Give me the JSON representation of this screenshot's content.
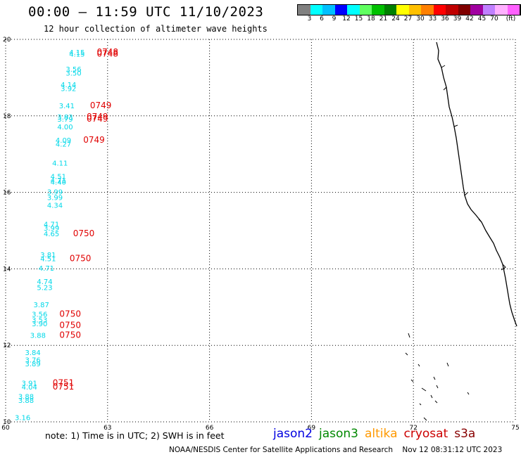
{
  "title": "00:00 – 11:59 UTC 11/10/2023",
  "subtitle": "12 hour collection of altimeter wave heights",
  "colorbar": {
    "colors": [
      "#808080",
      "#00ffff",
      "#00c0ff",
      "#0000ff",
      "#00ffff",
      "#60ff60",
      "#00c000",
      "#008000",
      "#ffff00",
      "#ffc000",
      "#ff8000",
      "#ff0000",
      "#c00000",
      "#800000",
      "#a000a0",
      "#c080ff",
      "#ffb0ff",
      "#ff60ff",
      "#000000"
    ],
    "labels": [
      "3",
      "6",
      "9",
      "12",
      "15",
      "18",
      "21",
      "24",
      "27",
      "30",
      "33",
      "36",
      "39",
      "42",
      "45",
      "70",
      "(ft)"
    ]
  },
  "map": {
    "x_ticks": [
      "60",
      "63",
      "66",
      "69",
      "72",
      "75"
    ],
    "y_ticks": [
      "20",
      "18",
      "16",
      "14",
      "12",
      "10"
    ],
    "x_range": [
      60,
      75
    ],
    "y_range": [
      10,
      20
    ],
    "wave_heights_ft": [
      {
        "lon": 62.1,
        "lat": 19.6,
        "v": "4.15"
      },
      {
        "lon": 62.1,
        "lat": 19.55,
        "v": "4.15"
      },
      {
        "lon": 62.0,
        "lat": 19.15,
        "v": "3.56"
      },
      {
        "lon": 62.0,
        "lat": 19.05,
        "v": "3.50"
      },
      {
        "lon": 61.85,
        "lat": 18.75,
        "v": "4.14"
      },
      {
        "lon": 61.85,
        "lat": 18.65,
        "v": "3.92"
      },
      {
        "lon": 61.8,
        "lat": 18.2,
        "v": "3.41"
      },
      {
        "lon": 61.75,
        "lat": 17.9,
        "v": "3.83"
      },
      {
        "lon": 61.75,
        "lat": 17.85,
        "v": "3.79"
      },
      {
        "lon": 61.75,
        "lat": 17.65,
        "v": "4.00"
      },
      {
        "lon": 61.7,
        "lat": 17.3,
        "v": "4.09"
      },
      {
        "lon": 61.7,
        "lat": 17.2,
        "v": "4.27"
      },
      {
        "lon": 61.6,
        "lat": 16.7,
        "v": "4.11"
      },
      {
        "lon": 61.55,
        "lat": 16.35,
        "v": "4.51"
      },
      {
        "lon": 61.55,
        "lat": 16.25,
        "v": "4.71"
      },
      {
        "lon": 61.55,
        "lat": 16.2,
        "v": "4.40"
      },
      {
        "lon": 61.45,
        "lat": 15.95,
        "v": "3.99"
      },
      {
        "lon": 61.45,
        "lat": 15.8,
        "v": "3.99"
      },
      {
        "lon": 61.45,
        "lat": 15.6,
        "v": "4.34"
      },
      {
        "lon": 61.35,
        "lat": 15.1,
        "v": "4.71"
      },
      {
        "lon": 61.35,
        "lat": 15.0,
        "v": "3.99"
      },
      {
        "lon": 61.35,
        "lat": 14.85,
        "v": "4.65"
      },
      {
        "lon": 61.25,
        "lat": 14.3,
        "v": "3.81"
      },
      {
        "lon": 61.25,
        "lat": 14.2,
        "v": "4.51"
      },
      {
        "lon": 61.2,
        "lat": 13.95,
        "v": "4.71"
      },
      {
        "lon": 61.15,
        "lat": 13.6,
        "v": "4.74"
      },
      {
        "lon": 61.15,
        "lat": 13.45,
        "v": "5.23"
      },
      {
        "lon": 61.05,
        "lat": 13.0,
        "v": "3.87"
      },
      {
        "lon": 61.0,
        "lat": 12.75,
        "v": "3.56"
      },
      {
        "lon": 61.0,
        "lat": 12.6,
        "v": "3.53"
      },
      {
        "lon": 61.0,
        "lat": 12.5,
        "v": "3.90"
      },
      {
        "lon": 60.95,
        "lat": 12.2,
        "v": "3.88"
      },
      {
        "lon": 60.8,
        "lat": 11.75,
        "v": "3.84"
      },
      {
        "lon": 60.8,
        "lat": 11.55,
        "v": "3.76"
      },
      {
        "lon": 60.8,
        "lat": 11.45,
        "v": "3.89"
      },
      {
        "lon": 60.7,
        "lat": 10.95,
        "v": "3.91"
      },
      {
        "lon": 60.7,
        "lat": 10.85,
        "v": "4.04"
      },
      {
        "lon": 60.6,
        "lat": 10.6,
        "v": "3.88"
      },
      {
        "lon": 60.6,
        "lat": 10.5,
        "v": "3.88"
      },
      {
        "lon": 60.5,
        "lat": 10.05,
        "v": "3.16"
      }
    ],
    "pass_times": [
      {
        "lon": 63.0,
        "lat": 19.6,
        "t": "0748"
      },
      {
        "lon": 63.0,
        "lat": 19.55,
        "t": "0748"
      },
      {
        "lon": 62.8,
        "lat": 18.2,
        "t": "0749"
      },
      {
        "lon": 62.7,
        "lat": 17.9,
        "t": "0749"
      },
      {
        "lon": 62.7,
        "lat": 17.85,
        "t": "0749"
      },
      {
        "lon": 62.6,
        "lat": 17.3,
        "t": "0749"
      },
      {
        "lon": 62.3,
        "lat": 14.85,
        "t": "0750"
      },
      {
        "lon": 62.2,
        "lat": 14.2,
        "t": "0750"
      },
      {
        "lon": 61.9,
        "lat": 12.75,
        "t": "0750"
      },
      {
        "lon": 61.9,
        "lat": 12.45,
        "t": "0750"
      },
      {
        "lon": 61.9,
        "lat": 12.2,
        "t": "0750"
      },
      {
        "lon": 61.7,
        "lat": 10.95,
        "t": "0751"
      },
      {
        "lon": 61.7,
        "lat": 10.85,
        "t": "0751"
      }
    ],
    "value_color": "#00d8e8",
    "time_color": "#e00000"
  },
  "note": "note: 1) Time is in UTC; 2) SWH is in feet",
  "legend": [
    {
      "label": "jason2",
      "color": "#0000e0"
    },
    {
      "label": "jason3",
      "color": "#008800"
    },
    {
      "label": "altika",
      "color": "#ff9900"
    },
    {
      "label": "cryosat",
      "color": "#cc0000"
    },
    {
      "label": "s3a",
      "color": "#880000"
    }
  ],
  "credit": "NOAA/NESDIS Center for Satellite Applications and Research    Nov 12 08:31:12 UTC 2023"
}
